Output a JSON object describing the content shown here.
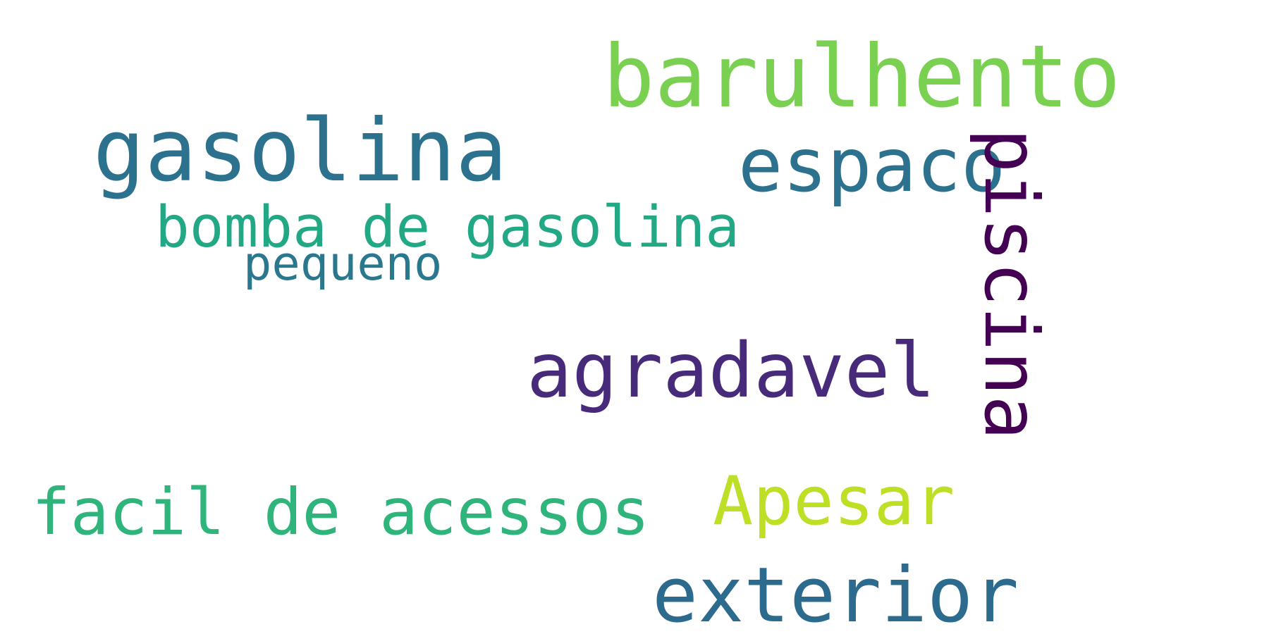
{
  "words": {
    "barulhento": {
      "text": "barulhento",
      "color": "#7ad151"
    },
    "gasolina": {
      "text": "gasolina",
      "color": "#2c728e"
    },
    "espaco": {
      "text": "espaco",
      "color": "#2c728e"
    },
    "piscina": {
      "text": "piscina",
      "color": "#440154"
    },
    "bomba_de_gasolina": {
      "text": "bomba de gasolina",
      "color": "#22a884"
    },
    "pequeno": {
      "text": "pequeno",
      "color": "#2a788e"
    },
    "agradavel": {
      "text": "agradavel",
      "color": "#472a7a"
    },
    "facil_de_acessos": {
      "text": "facil de acessos",
      "color": "#2fb47c"
    },
    "apesar": {
      "text": "Apesar",
      "color": "#bddf26"
    },
    "exterior": {
      "text": "exterior",
      "color": "#2c6b8e"
    }
  }
}
